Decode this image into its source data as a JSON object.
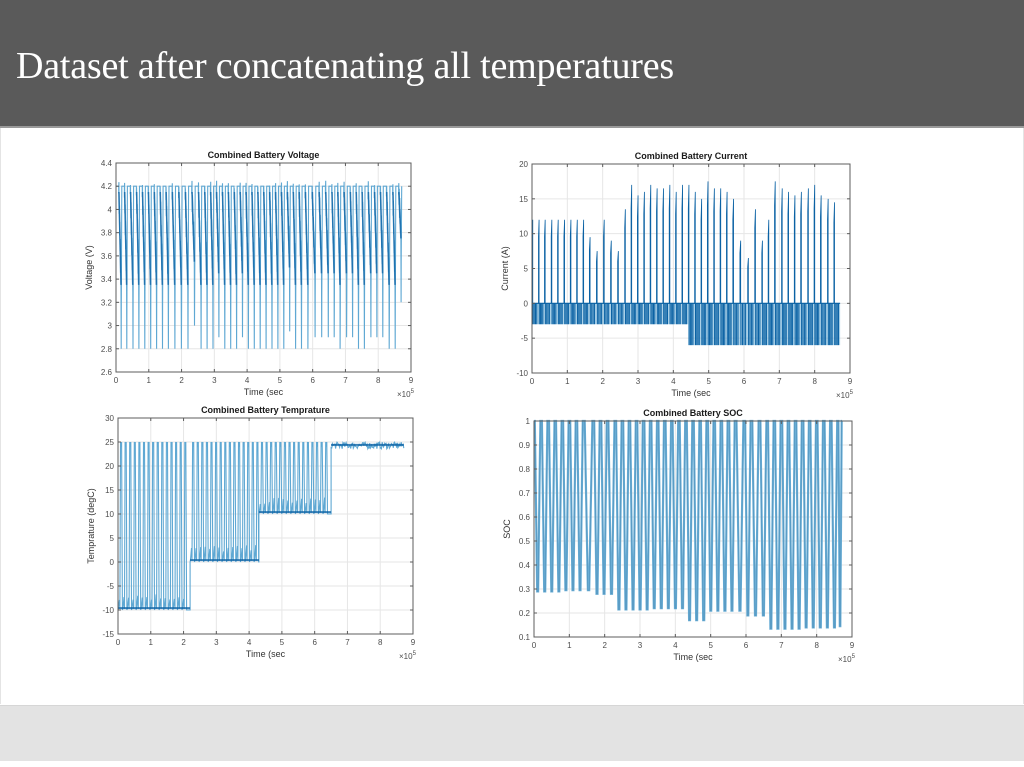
{
  "slide": {
    "title": "Dataset after concatenating all temperatures"
  },
  "colors": {
    "header_bg": "#5a5a5a",
    "footer_bg": "#e3e3e3",
    "series_dark": "#0b62a4",
    "series_light": "#5fa8d3",
    "soc_series": "#6aaed6",
    "grid": "#e6e6e6",
    "axis": "#5c5c5c"
  },
  "chart_data": [
    {
      "id": "voltage",
      "type": "line",
      "title": "Combined Battery Voltage",
      "xlabel": "Time (sec",
      "ylabel": "Voltage (V)",
      "x_exponent_label": "×10",
      "x_exponent": "5",
      "xlim": [
        0,
        9
      ],
      "ylim": [
        2.6,
        4.4
      ],
      "xticks": [
        "0",
        "1",
        "2",
        "3",
        "4",
        "5",
        "6",
        "7",
        "8",
        "9"
      ],
      "xtick_values": [
        0,
        1,
        2,
        3,
        4,
        5,
        6,
        7,
        8,
        9
      ],
      "yticks": [
        "2.6",
        "2.8",
        "3",
        "3.2",
        "3.4",
        "3.6",
        "3.8",
        "4",
        "4.2",
        "4.4"
      ],
      "ytick_values": [
        2.6,
        2.8,
        3.0,
        3.2,
        3.4,
        3.6,
        3.8,
        4.0,
        4.2,
        4.4
      ],
      "grid": true,
      "x_units_note": "time in units of 1e5 s",
      "series": [
        {
          "name": "Voltage",
          "high": 4.2,
          "cycle_starts": [
            0.0,
            0.18,
            0.35,
            0.54,
            0.72,
            0.9,
            1.08,
            1.26,
            1.44,
            1.62,
            1.82,
            2.02,
            2.22,
            2.42,
            2.62,
            2.8,
            2.98,
            3.16,
            3.34,
            3.52,
            3.7,
            3.88,
            4.06,
            4.24,
            4.42,
            4.6,
            4.78,
            4.96,
            5.14,
            5.32,
            5.5,
            5.68,
            5.88,
            6.1,
            6.3,
            6.5,
            6.68,
            6.86,
            7.06,
            7.24,
            7.42,
            7.6,
            7.8,
            7.98,
            8.16,
            8.36,
            8.54
          ],
          "cycle_mins": [
            2.8,
            2.8,
            2.8,
            2.8,
            2.8,
            2.8,
            2.8,
            2.8,
            2.8,
            2.8,
            2.8,
            2.8,
            3.0,
            2.8,
            2.8,
            2.8,
            2.9,
            2.8,
            2.8,
            2.8,
            2.9,
            2.8,
            2.8,
            2.8,
            2.8,
            2.8,
            2.8,
            2.8,
            2.95,
            2.8,
            2.8,
            2.8,
            2.9,
            2.9,
            2.9,
            2.9,
            2.8,
            2.9,
            2.9,
            2.8,
            2.8,
            2.9,
            2.9,
            2.9,
            2.8,
            2.8,
            3.2
          ],
          "end_time": 8.72
        }
      ]
    },
    {
      "id": "current",
      "type": "line",
      "title": "Combined Battery Current",
      "xlabel": "Time (sec",
      "ylabel": "Current (A)",
      "x_exponent_label": "×10",
      "x_exponent": "5",
      "xlim": [
        0,
        9
      ],
      "ylim": [
        -10,
        20
      ],
      "xticks": [
        "0",
        "1",
        "2",
        "3",
        "4",
        "5",
        "6",
        "7",
        "8",
        "9"
      ],
      "xtick_values": [
        0,
        1,
        2,
        3,
        4,
        5,
        6,
        7,
        8,
        9
      ],
      "yticks": [
        "-10",
        "-5",
        "0",
        "5",
        "10",
        "15",
        "20"
      ],
      "ytick_values": [
        -10,
        -5,
        0,
        5,
        10,
        15,
        20
      ],
      "grid": true,
      "series": [
        {
          "name": "Current",
          "cycle_starts": [
            0.0,
            0.18,
            0.35,
            0.54,
            0.72,
            0.9,
            1.08,
            1.26,
            1.44,
            1.62,
            1.82,
            2.02,
            2.22,
            2.42,
            2.62,
            2.8,
            2.98,
            3.16,
            3.34,
            3.52,
            3.7,
            3.88,
            4.06,
            4.24,
            4.42,
            4.6,
            4.78,
            4.96,
            5.14,
            5.32,
            5.5,
            5.68,
            5.88,
            6.1,
            6.3,
            6.5,
            6.68,
            6.86,
            7.06,
            7.24,
            7.42,
            7.6,
            7.8,
            7.98,
            8.16,
            8.36,
            8.54
          ],
          "cycle_peaks": [
            12,
            12,
            12,
            12,
            12,
            12,
            12,
            12,
            12,
            9.5,
            7.5,
            12,
            9,
            7.5,
            13.5,
            17,
            15.5,
            16,
            17,
            16.5,
            16.5,
            17,
            16,
            17,
            17,
            16,
            15,
            17.5,
            16.5,
            16.5,
            16,
            15,
            9,
            6.5,
            13.5,
            9,
            12,
            17.5,
            16.5,
            16,
            15.5,
            16,
            16.5,
            17,
            15.5,
            15,
            14.5
          ],
          "cycle_negatives": [
            -3,
            -3,
            -3,
            -3,
            -3,
            -3,
            -3,
            -3,
            -3,
            -3,
            -3,
            -3,
            -3,
            -3,
            -3,
            -3,
            -3,
            -3,
            -3,
            -3,
            -3,
            -3,
            -3,
            -3,
            -6,
            -6,
            -6,
            -6,
            -6,
            -6,
            -6,
            -6,
            -6,
            -6,
            -6,
            -6,
            -6,
            -6,
            -6,
            -6,
            -6,
            -6,
            -6,
            -6,
            -6,
            -6,
            -6
          ],
          "end_time": 8.72
        }
      ]
    },
    {
      "id": "temperature",
      "type": "line",
      "title": "Combined Battery Temprature",
      "xlabel": "Time (sec",
      "ylabel": "Temprature (degC)",
      "x_exponent_label": "×10",
      "x_exponent": "5",
      "xlim": [
        0,
        9
      ],
      "ylim": [
        -15,
        30
      ],
      "xticks": [
        "0",
        "1",
        "2",
        "3",
        "4",
        "5",
        "6",
        "7",
        "8",
        "9"
      ],
      "xtick_values": [
        0,
        1,
        2,
        3,
        4,
        5,
        6,
        7,
        8,
        9
      ],
      "yticks": [
        "-15",
        "-10",
        "-5",
        "0",
        "5",
        "10",
        "15",
        "20",
        "25",
        "30"
      ],
      "ytick_values": [
        -15,
        -10,
        -5,
        0,
        5,
        10,
        15,
        20,
        25,
        30
      ],
      "grid": true,
      "series": [
        {
          "name": "Temperature",
          "segments": [
            {
              "start": 0.0,
              "end": 2.2,
              "ambient": -10,
              "charge_peak": 25
            },
            {
              "start": 2.2,
              "end": 4.3,
              "ambient": 0,
              "charge_peak": 25
            },
            {
              "start": 4.3,
              "end": 6.5,
              "ambient": 10,
              "charge_peak": 25
            },
            {
              "start": 6.5,
              "end": 8.72,
              "ambient": 24,
              "charge_peak": 25.5
            }
          ],
          "cycle_period": 0.14
        }
      ]
    },
    {
      "id": "soc",
      "type": "line",
      "title": "Combined Battery SOC",
      "xlabel": "Time (sec",
      "ylabel": "SOC",
      "x_exponent_label": "×10",
      "x_exponent": "5",
      "xlim": [
        0,
        9
      ],
      "ylim": [
        0.1,
        1
      ],
      "xticks": [
        "0",
        "1",
        "2",
        "3",
        "4",
        "5",
        "6",
        "7",
        "8",
        "9"
      ],
      "xtick_values": [
        0,
        1,
        2,
        3,
        4,
        5,
        6,
        7,
        8,
        9
      ],
      "yticks": [
        "0.1",
        "0.2",
        "0.3",
        "0.4",
        "0.5",
        "0.6",
        "0.7",
        "0.8",
        "0.9",
        "1"
      ],
      "ytick_values": [
        0.1,
        0.2,
        0.3,
        0.4,
        0.5,
        0.6,
        0.7,
        0.8,
        0.9,
        1.0
      ],
      "grid": true,
      "series": [
        {
          "name": "SOC",
          "cycle_starts": [
            0.0,
            0.2,
            0.4,
            0.6,
            0.8,
            1.0,
            1.2,
            1.4,
            1.68,
            1.88,
            2.08,
            2.3,
            2.5,
            2.7,
            2.9,
            3.1,
            3.3,
            3.5,
            3.7,
            3.9,
            4.1,
            4.3,
            4.5,
            4.7,
            4.9,
            5.1,
            5.3,
            5.5,
            5.7,
            5.95,
            6.15,
            6.38,
            6.6,
            6.8,
            7.0,
            7.2,
            7.4,
            7.6,
            7.8,
            8.0,
            8.2,
            8.4,
            8.6
          ],
          "cycle_mins": [
            0.29,
            0.29,
            0.29,
            0.29,
            0.295,
            0.295,
            0.295,
            0.295,
            0.28,
            0.28,
            0.28,
            0.215,
            0.215,
            0.215,
            0.215,
            0.215,
            0.22,
            0.22,
            0.22,
            0.22,
            0.22,
            0.17,
            0.17,
            0.17,
            0.21,
            0.21,
            0.21,
            0.21,
            0.21,
            0.19,
            0.19,
            0.19,
            0.135,
            0.135,
            0.135,
            0.135,
            0.135,
            0.14,
            0.14,
            0.14,
            0.14,
            0.14,
            0.145
          ],
          "max": 1.0,
          "end_time": 8.72
        }
      ]
    }
  ]
}
